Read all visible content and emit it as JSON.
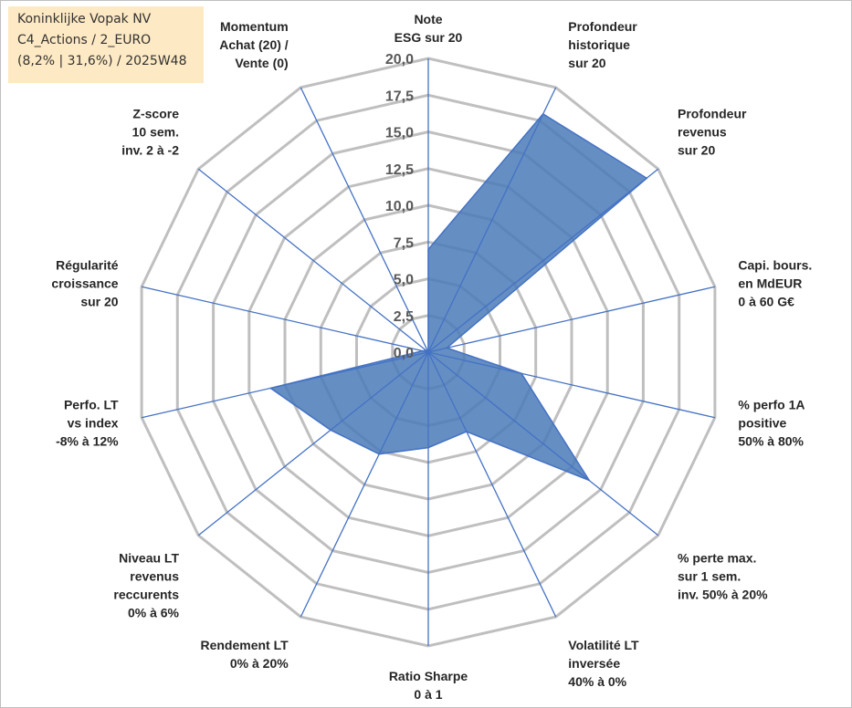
{
  "info": {
    "line1": "Koninklijke Vopak NV",
    "line2": "C4_Actions / 2_EURO",
    "line3": "(8,2% | 31,6%) / 2025W48"
  },
  "chart_data": {
    "type": "radar",
    "title": "",
    "rlim": [
      0,
      20
    ],
    "ticks": [
      "0,0",
      "2,5",
      "5,0",
      "7,5",
      "10,0",
      "12,5",
      "15,0",
      "17,5",
      "20,0"
    ],
    "grid": true,
    "legend": "none",
    "colors": {
      "fill": "#4a7ab8",
      "line": "#4472c4",
      "grid": "#bfbfbf",
      "spoke": "#4472c4"
    },
    "axes": [
      {
        "label": [
          "Note",
          "ESG sur 20"
        ],
        "value": 7.0
      },
      {
        "label": [
          "Profondeur",
          "historique",
          "sur 20"
        ],
        "value": 18.0
      },
      {
        "label": [
          "Profondeur",
          "revenus",
          "sur 20"
        ],
        "value": 19.0
      },
      {
        "label": [
          "Capi. bours.",
          "en MdEUR",
          "0 à 60 G€"
        ],
        "value": 1.3
      },
      {
        "label": [
          "% perfo 1A",
          "positive",
          "50% à 80%"
        ],
        "value": 6.5
      },
      {
        "label": [
          "% perte max.",
          "sur 1 sem.",
          "inv. 50% à 20%"
        ],
        "value": 14.0
      },
      {
        "label": [
          "Volatilité LT",
          "inversée",
          "40% à 0%"
        ],
        "value": 6.0
      },
      {
        "label": [
          "Ratio Sharpe",
          "0 à 1"
        ],
        "value": 6.5
      },
      {
        "label": [
          "Rendement LT",
          "0% à 20%"
        ],
        "value": 7.7
      },
      {
        "label": [
          "Niveau LT",
          "revenus",
          "reccurents",
          "0% à 6%"
        ],
        "value": 8.5
      },
      {
        "label": [
          "Perfo. LT",
          "vs index",
          "-8% à 12%"
        ],
        "value": 11.0
      },
      {
        "label": [
          "Régularité",
          "croissance",
          "sur 20"
        ],
        "value": 0.4
      },
      {
        "label": [
          "Z-score",
          "10 sem.",
          "inv. 2 à -2"
        ],
        "value": 0.2
      },
      {
        "label": [
          "Momentum",
          "Achat (20) /",
          "Vente (0)"
        ],
        "value": 0.0
      }
    ]
  }
}
